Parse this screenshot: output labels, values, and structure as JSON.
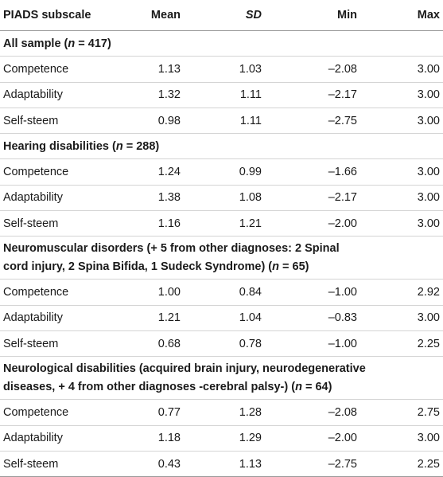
{
  "table": {
    "headers": {
      "subscale": "PIADS subscale",
      "mean": "Mean",
      "sd": "SD",
      "min": "Min",
      "max": "Max"
    },
    "groups": [
      {
        "label_pre": "All sample (",
        "n_sym": "n",
        "label_post": " = 417)",
        "rows": [
          {
            "name": "Competence",
            "mean": "1.13",
            "sd": "1.03",
            "min": "–2.08",
            "max": "3.00"
          },
          {
            "name": "Adaptability",
            "mean": "1.32",
            "sd": "1.11",
            "min": "–2.17",
            "max": "3.00"
          },
          {
            "name": "Self-steem",
            "mean": "0.98",
            "sd": "1.11",
            "min": "–2.75",
            "max": "3.00"
          }
        ]
      },
      {
        "label_pre": "Hearing disabilities (",
        "n_sym": "n",
        "label_post": " = 288)",
        "rows": [
          {
            "name": "Competence",
            "mean": "1.24",
            "sd": "0.99",
            "min": "–1.66",
            "max": "3.00"
          },
          {
            "name": "Adaptability",
            "mean": "1.38",
            "sd": "1.08",
            "min": "–2.17",
            "max": "3.00"
          },
          {
            "name": "Self-steem",
            "mean": "1.16",
            "sd": "1.21",
            "min": "–2.00",
            "max": "3.00"
          }
        ]
      },
      {
        "label_pre": "Neuromuscular disorders (+ 5 from other diagnoses: 2 Spinal\ncord injury, 2 Spina Bifida, 1 Sudeck Syndrome) (",
        "n_sym": "n",
        "label_post": " = 65)",
        "rows": [
          {
            "name": "Competence",
            "mean": "1.00",
            "sd": "0.84",
            "min": "–1.00",
            "max": "2.92"
          },
          {
            "name": "Adaptability",
            "mean": "1.21",
            "sd": "1.04",
            "min": "–0.83",
            "max": "3.00"
          },
          {
            "name": "Self-steem",
            "mean": "0.68",
            "sd": "0.78",
            "min": "–1.00",
            "max": "2.25"
          }
        ]
      },
      {
        "label_pre": "Neurological disabilities (acquired brain injury, neurodegenerative\ndiseases, + 4 from other diagnoses -cerebral palsy-) (",
        "n_sym": "n",
        "label_post": " = 64)",
        "rows": [
          {
            "name": "Competence",
            "mean": "0.77",
            "sd": "1.28",
            "min": "–2.08",
            "max": "2.75"
          },
          {
            "name": "Adaptability",
            "mean": "1.18",
            "sd": "1.29",
            "min": "–2.00",
            "max": "3.00"
          },
          {
            "name": "Self-steem",
            "mean": "0.43",
            "sd": "1.13",
            "min": "–2.75",
            "max": "2.25"
          }
        ]
      }
    ]
  }
}
